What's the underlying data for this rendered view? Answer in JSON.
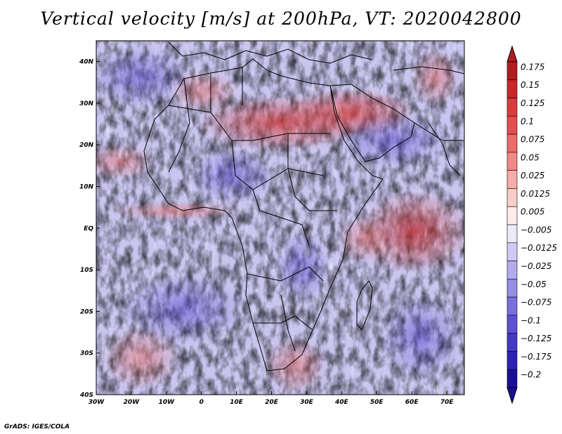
{
  "title": "Vertical velocity [m/s] at 200hPa, VT: 2020042800",
  "credit": "GrADS: IGES/COLA",
  "map": {
    "region": "Africa",
    "projection": "latlon",
    "lon_range": [
      -30,
      75
    ],
    "lat_range": [
      -40,
      45
    ],
    "lon_ticks": [
      "30W",
      "20W",
      "10W",
      "0",
      "10E",
      "20E",
      "30E",
      "40E",
      "50E",
      "60E",
      "70E"
    ],
    "lat_ticks": [
      "40N",
      "30N",
      "20N",
      "10N",
      "EQ",
      "10S",
      "20S",
      "30S",
      "40S"
    ],
    "field": "vertical velocity",
    "level": "200hPa",
    "valid_time": "2020042800",
    "units": "m/s"
  },
  "colorbar": {
    "labels": [
      "0.175",
      "0.15",
      "0.125",
      "0.1",
      "0.075",
      "0.05",
      "0.025",
      "0.0125",
      "0.005",
      "−0.005",
      "−0.0125",
      "−0.025",
      "−0.05",
      "−0.075",
      "−0.1",
      "−0.125",
      "−0.175",
      "−0.2"
    ],
    "colors": [
      "#b01c20",
      "#c8282c",
      "#d83c3c",
      "#e45050",
      "#ec6a68",
      "#f08a86",
      "#f5aca6",
      "#f9cdc8",
      "#fdeceb",
      "#eceaf9",
      "#cfcaf3",
      "#b3acec",
      "#968de4",
      "#7a6fdc",
      "#5e52d2",
      "#4438c4",
      "#2e22b0",
      "#1a0f96"
    ],
    "top_arrow_color": "#b01c20",
    "bottom_arrow_color": "#1a0f96"
  },
  "colors": {
    "positive_core": "#d23c3c",
    "negative_core": "#5a4fd0",
    "background": "#ffffff",
    "border_lines": "#000000"
  }
}
